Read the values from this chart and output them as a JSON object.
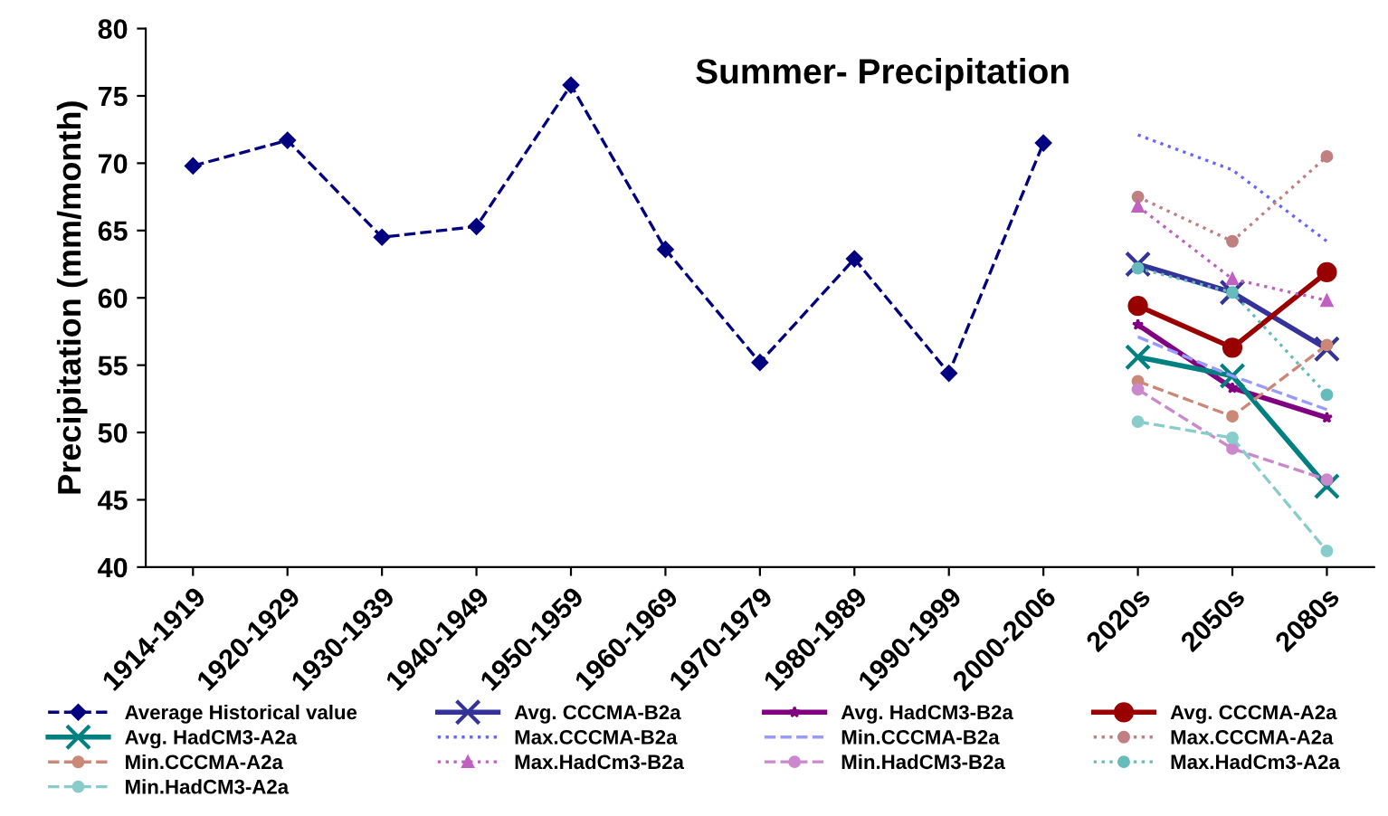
{
  "chart_data": {
    "type": "line",
    "title": "Summer- Precipitation",
    "ylabel": "Precipitation (mm/month)",
    "categories": [
      "1914-1919",
      "1920-1929",
      "1930-1939",
      "1940-1949",
      "1950-1959",
      "1960-1969",
      "1970-1979",
      "1980-1989",
      "1990-1999",
      "2000-2006",
      "2020s",
      "2050s",
      "2080s"
    ],
    "ylim": [
      40,
      80
    ],
    "yticks": [
      40,
      45,
      50,
      55,
      60,
      65,
      70,
      75,
      80
    ],
    "grid": false,
    "legend": "bottom",
    "series": [
      {
        "name": "Average Historical value",
        "color": "#000080",
        "marker": "diamond",
        "line_style": "dashed",
        "values": [
          69.8,
          71.7,
          64.5,
          65.3,
          75.8,
          63.6,
          55.2,
          62.9,
          54.4,
          71.5,
          null,
          null,
          null
        ]
      },
      {
        "name": "Avg. CCCMA-B2a",
        "color": "#333399",
        "marker": "cross",
        "line_style": "solid",
        "values": [
          null,
          null,
          null,
          null,
          null,
          null,
          null,
          null,
          null,
          null,
          62.5,
          60.4,
          56.2
        ]
      },
      {
        "name": "Avg. HadCM3-B2a",
        "color": "#800080",
        "marker": "star",
        "line_style": "solid",
        "values": [
          null,
          null,
          null,
          null,
          null,
          null,
          null,
          null,
          null,
          null,
          58.0,
          53.3,
          51.1
        ]
      },
      {
        "name": "Avg. CCCMA-A2a",
        "color": "#990000",
        "marker": "circle",
        "line_style": "solid",
        "values": [
          null,
          null,
          null,
          null,
          null,
          null,
          null,
          null,
          null,
          null,
          59.4,
          56.3,
          61.9
        ]
      },
      {
        "name": "Avg. HadCM3-A2a",
        "color": "#008080",
        "marker": "cross",
        "line_style": "solid",
        "values": [
          null,
          null,
          null,
          null,
          null,
          null,
          null,
          null,
          null,
          null,
          55.6,
          54.2,
          46.0
        ]
      },
      {
        "name": "Max.CCCMA-B2a",
        "color": "#6666ff",
        "marker": "none",
        "line_style": "dotted",
        "values": [
          null,
          null,
          null,
          null,
          null,
          null,
          null,
          null,
          null,
          null,
          72.1,
          69.5,
          64.2
        ]
      },
      {
        "name": "Min.CCCMA-B2a",
        "color": "#9999ff",
        "marker": "none",
        "line_style": "dashed",
        "values": [
          null,
          null,
          null,
          null,
          null,
          null,
          null,
          null,
          null,
          null,
          57.1,
          54.2,
          51.7
        ]
      },
      {
        "name": "Max.CCCMA-A2a",
        "color": "#c08080",
        "marker": "circle",
        "line_style": "dotted",
        "values": [
          null,
          null,
          null,
          null,
          null,
          null,
          null,
          null,
          null,
          null,
          67.5,
          64.2,
          70.5
        ]
      },
      {
        "name": "Min.CCCMA-A2a",
        "color": "#cc8877",
        "marker": "circle",
        "line_style": "dashed",
        "values": [
          null,
          null,
          null,
          null,
          null,
          null,
          null,
          null,
          null,
          null,
          53.8,
          51.2,
          56.5
        ]
      },
      {
        "name": "Max.HadCm3-B2a",
        "color": "#c060c0",
        "marker": "triangle",
        "line_style": "dotted",
        "values": [
          null,
          null,
          null,
          null,
          null,
          null,
          null,
          null,
          null,
          null,
          66.8,
          61.4,
          59.8
        ]
      },
      {
        "name": "Min.HadCM3-B2a",
        "color": "#cc88cc",
        "marker": "circle",
        "line_style": "dashed",
        "values": [
          null,
          null,
          null,
          null,
          null,
          null,
          null,
          null,
          null,
          null,
          53.2,
          48.8,
          46.5
        ]
      },
      {
        "name": "Max.HadCm3-A2a",
        "color": "#66bbbb",
        "marker": "circle",
        "line_style": "dotted",
        "values": [
          null,
          null,
          null,
          null,
          null,
          null,
          null,
          null,
          null,
          null,
          62.2,
          60.4,
          52.8
        ]
      },
      {
        "name": "Min.HadCM3-A2a",
        "color": "#88cccc",
        "marker": "circle",
        "line_style": "dashed",
        "values": [
          null,
          null,
          null,
          null,
          null,
          null,
          null,
          null,
          null,
          null,
          50.8,
          49.6,
          41.2
        ]
      }
    ]
  }
}
